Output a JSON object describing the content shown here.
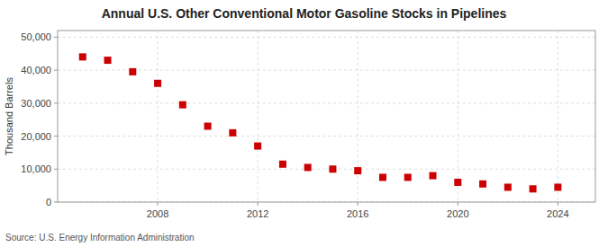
{
  "chart_data": {
    "type": "scatter",
    "title": "Annual U.S. Other Conventional Motor Gasoline Stocks in Pipelines",
    "ylabel": "Thousand Barrels",
    "source": "Source: U.S. Energy Information Administration",
    "x": [
      2005,
      2006,
      2007,
      2008,
      2009,
      2010,
      2011,
      2012,
      2013,
      2014,
      2015,
      2016,
      2017,
      2018,
      2019,
      2020,
      2021,
      2022,
      2023,
      2024
    ],
    "values": [
      44000,
      43000,
      39500,
      36000,
      29500,
      23000,
      21000,
      17000,
      11500,
      10500,
      10000,
      9500,
      7500,
      7500,
      8000,
      6000,
      5500,
      4500,
      4000,
      4500
    ],
    "color": "#cc0000",
    "marker": "square",
    "xlim": [
      2004.0,
      2025.5
    ],
    "xticks": [
      2008,
      2012,
      2016,
      2020,
      2024
    ],
    "ylim": [
      0,
      52000
    ],
    "yticks": [
      0,
      {
        "value": 10000,
        "label": "10,000"
      },
      {
        "value": 20000,
        "label": "20,000"
      },
      {
        "value": 30000,
        "label": "30,000"
      },
      {
        "value": 40000,
        "label": "40,000"
      },
      {
        "value": 50000,
        "label": "50,000"
      }
    ],
    "grid": true
  }
}
